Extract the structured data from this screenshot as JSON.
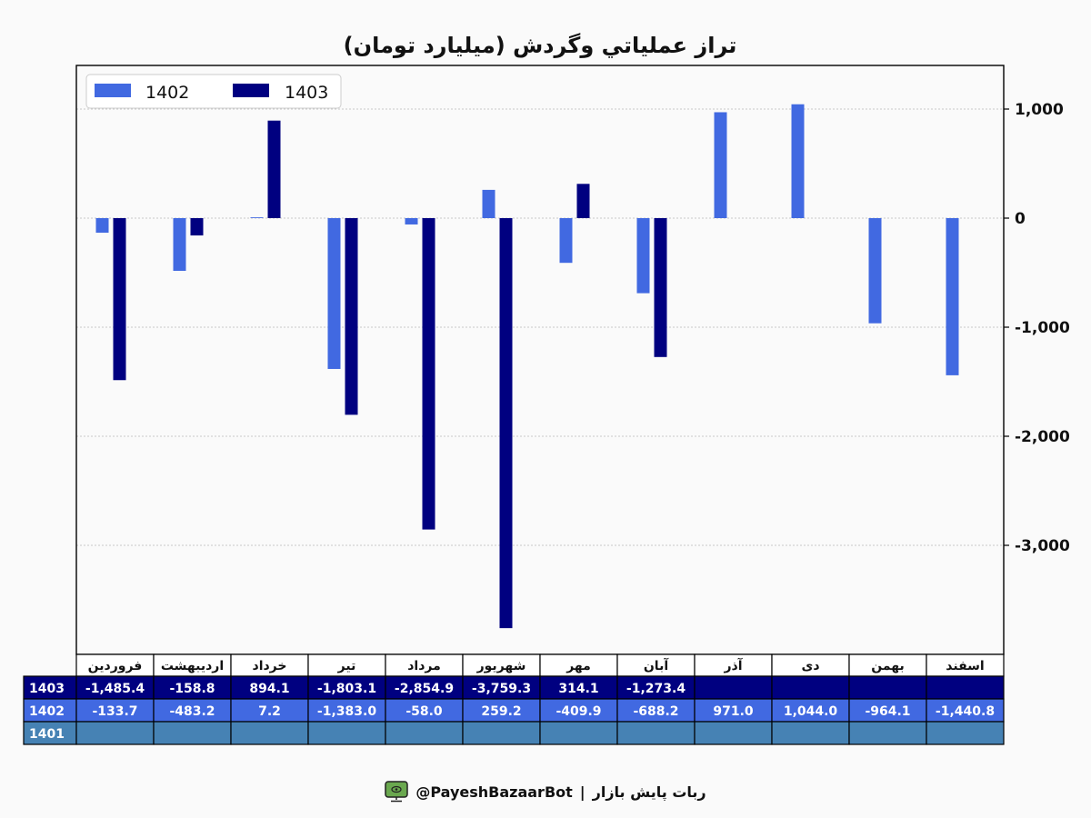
{
  "colors": {
    "series_1402": "#4169e1",
    "series_1403": "#000080",
    "row_1401": "#4682b4",
    "background": "#fafafa",
    "icon_green": "#6aa84f"
  },
  "chart_data": {
    "type": "bar",
    "title": "تراز عملياتي وگردش (ميليارد تومان)",
    "categories": [
      "فروردین",
      "اردیبهشت",
      "خرداد",
      "تیر",
      "مرداد",
      "شهریور",
      "مهر",
      "آبان",
      "آذر",
      "دی",
      "بهمن",
      "اسفند"
    ],
    "series": [
      {
        "name": "1402",
        "values": [
          -133.7,
          -483.2,
          7.2,
          -1383.0,
          -58.0,
          259.2,
          -409.9,
          -688.2,
          971.0,
          1044.0,
          -964.1,
          -1440.8
        ]
      },
      {
        "name": "1403",
        "values": [
          -1485.4,
          -158.8,
          894.1,
          -1803.1,
          -2854.9,
          -3759.3,
          314.1,
          -1273.4,
          null,
          null,
          null,
          null
        ]
      }
    ],
    "ylim": [
      -4000,
      1400
    ],
    "yticks": [
      1000,
      0,
      -1000,
      -2000,
      -3000
    ],
    "ytick_labels": [
      "1,000",
      "0",
      "-1,000",
      "-2,000",
      "-3,000"
    ],
    "grid": true,
    "legend": "top-left",
    "legend_labels": [
      "1402",
      "1403"
    ]
  },
  "table": {
    "rows": [
      {
        "year": "1403",
        "values": [
          "-1,485.4",
          "-158.8",
          "894.1",
          "-1,803.1",
          "-2,854.9",
          "-3,759.3",
          "314.1",
          "-1,273.4",
          "",
          "",
          "",
          ""
        ]
      },
      {
        "year": "1402",
        "values": [
          "-133.7",
          "-483.2",
          "7.2",
          "-1,383.0",
          "-58.0",
          "259.2",
          "-409.9",
          "-688.2",
          "971.0",
          "1,044.0",
          "-964.1",
          "-1,440.8"
        ]
      },
      {
        "year": "1401",
        "values": [
          "",
          "",
          "",
          "",
          "",
          "",
          "",
          "",
          "",
          "",
          "",
          ""
        ]
      }
    ]
  },
  "footer": {
    "bot_name": "ربات پایش بازار",
    "separator": "|",
    "handle": "@PayeshBazaarBot",
    "icon": "robot-screen-icon"
  }
}
